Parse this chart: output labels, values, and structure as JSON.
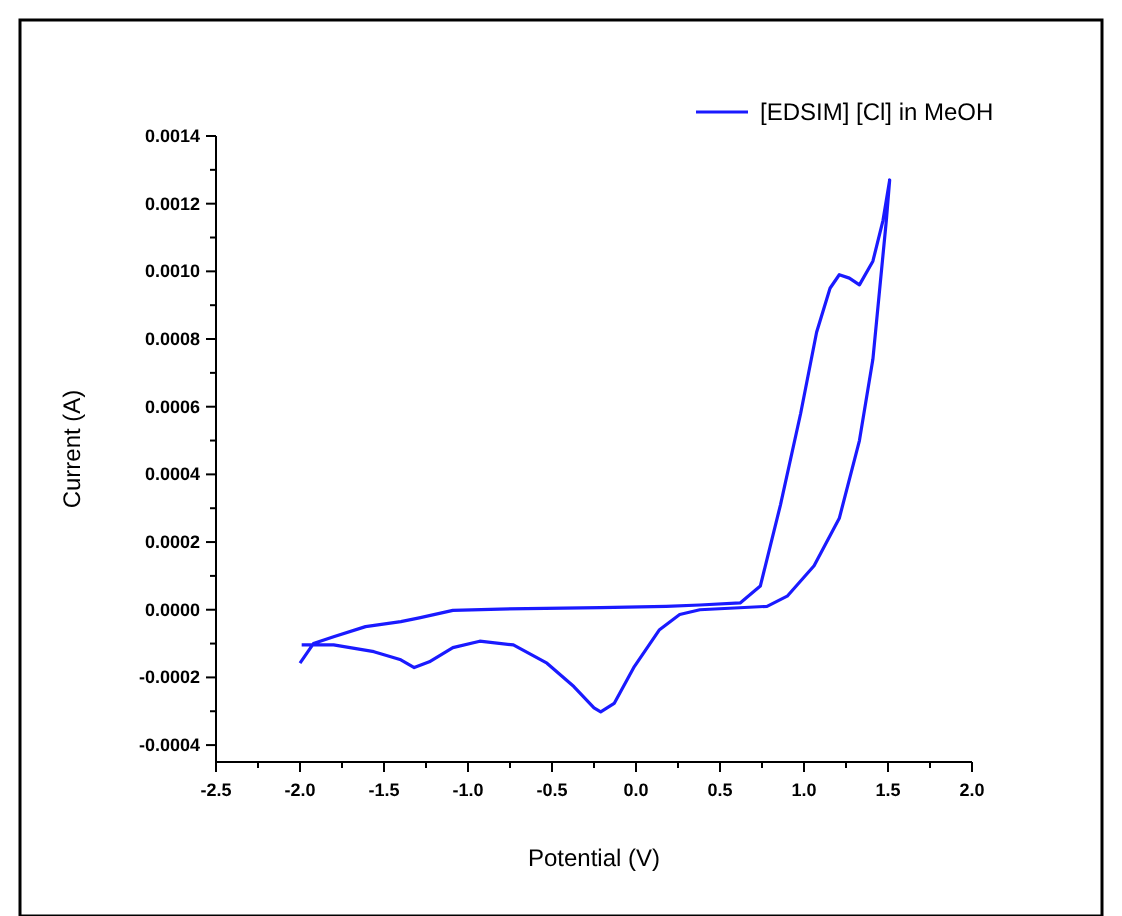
{
  "chart_data": {
    "type": "line",
    "xlabel": "Potential (V)",
    "ylabel": "Current (A)",
    "xlim": [
      -2.5,
      2.0
    ],
    "ylim": [
      -0.00045,
      0.0014
    ],
    "xticks": [
      -2.5,
      {
        "value": -2,
        "label": "-2.0"
      },
      -1.5,
      {
        "value": -1,
        "label": "-1.0"
      },
      -0.5,
      {
        "value": 0,
        "label": "0.0"
      },
      0.5,
      {
        "value": 1,
        "label": "1.0"
      },
      1.5,
      {
        "value": 2,
        "label": "2.0"
      }
    ],
    "yticks": [
      {
        "value": -0.0004,
        "label": "-0.0004"
      },
      {
        "value": -0.0002,
        "label": "-0.0002"
      },
      {
        "value": 0,
        "label": "0.0000"
      },
      {
        "value": 0.0002,
        "label": "0.0002"
      },
      {
        "value": 0.0004,
        "label": "0.0004"
      },
      {
        "value": 0.0006,
        "label": "0.0006"
      },
      {
        "value": 0.0008,
        "label": "0.0008"
      },
      {
        "value": 0.001,
        "label": "0.0010"
      },
      {
        "value": 0.0012,
        "label": "0.0012"
      },
      {
        "value": 0.0014,
        "label": "0.0014"
      }
    ],
    "grid": false,
    "legend": "top right",
    "marker": "none",
    "line_style": "solid",
    "series": [
      {
        "name": "[EDSIM] [Cl] in MeOH",
        "color": "#1a1aff",
        "x": [
          -2.0,
          -1.92,
          -1.8,
          -1.61,
          -1.4,
          -1.29,
          -1.09,
          -0.81,
          -0.21,
          0.18,
          0.38,
          0.62,
          0.74,
          0.86,
          0.98,
          1.075,
          1.155,
          1.21,
          1.27,
          1.33,
          1.41,
          1.47,
          1.51,
          1.49,
          1.41,
          1.33,
          1.21,
          1.06,
          0.9,
          0.78,
          0.38,
          0.26,
          0.14,
          -0.01,
          -0.13,
          -0.21,
          -0.25,
          -0.37,
          -0.53,
          -0.73,
          -0.93,
          -1.09,
          -1.23,
          -1.32,
          -1.4,
          -1.56,
          -1.8,
          -1.99
        ],
        "values": [
          -0.000158,
          -0.0001,
          -8e-05,
          -5e-05,
          -3.5e-05,
          -2.4e-05,
          -2e-06,
          2e-06,
          6e-06,
          1e-05,
          1.4e-05,
          2e-05,
          7e-05,
          0.00031,
          0.00058,
          0.00082,
          0.00095,
          0.00099,
          0.00098,
          0.00096,
          0.00103,
          0.00115,
          0.00127,
          0.00115,
          0.00074,
          0.0005,
          0.00027,
          0.00013,
          4e-05,
          1e-05,
          0,
          -1.4e-05,
          -5.9e-05,
          -0.000168,
          -0.000277,
          -0.000302,
          -0.00029,
          -0.000227,
          -0.000158,
          -0.000104,
          -9.3e-05,
          -0.000112,
          -0.000154,
          -0.000171,
          -0.000148,
          -0.000124,
          -0.000104,
          -0.000104
        ]
      }
    ]
  }
}
